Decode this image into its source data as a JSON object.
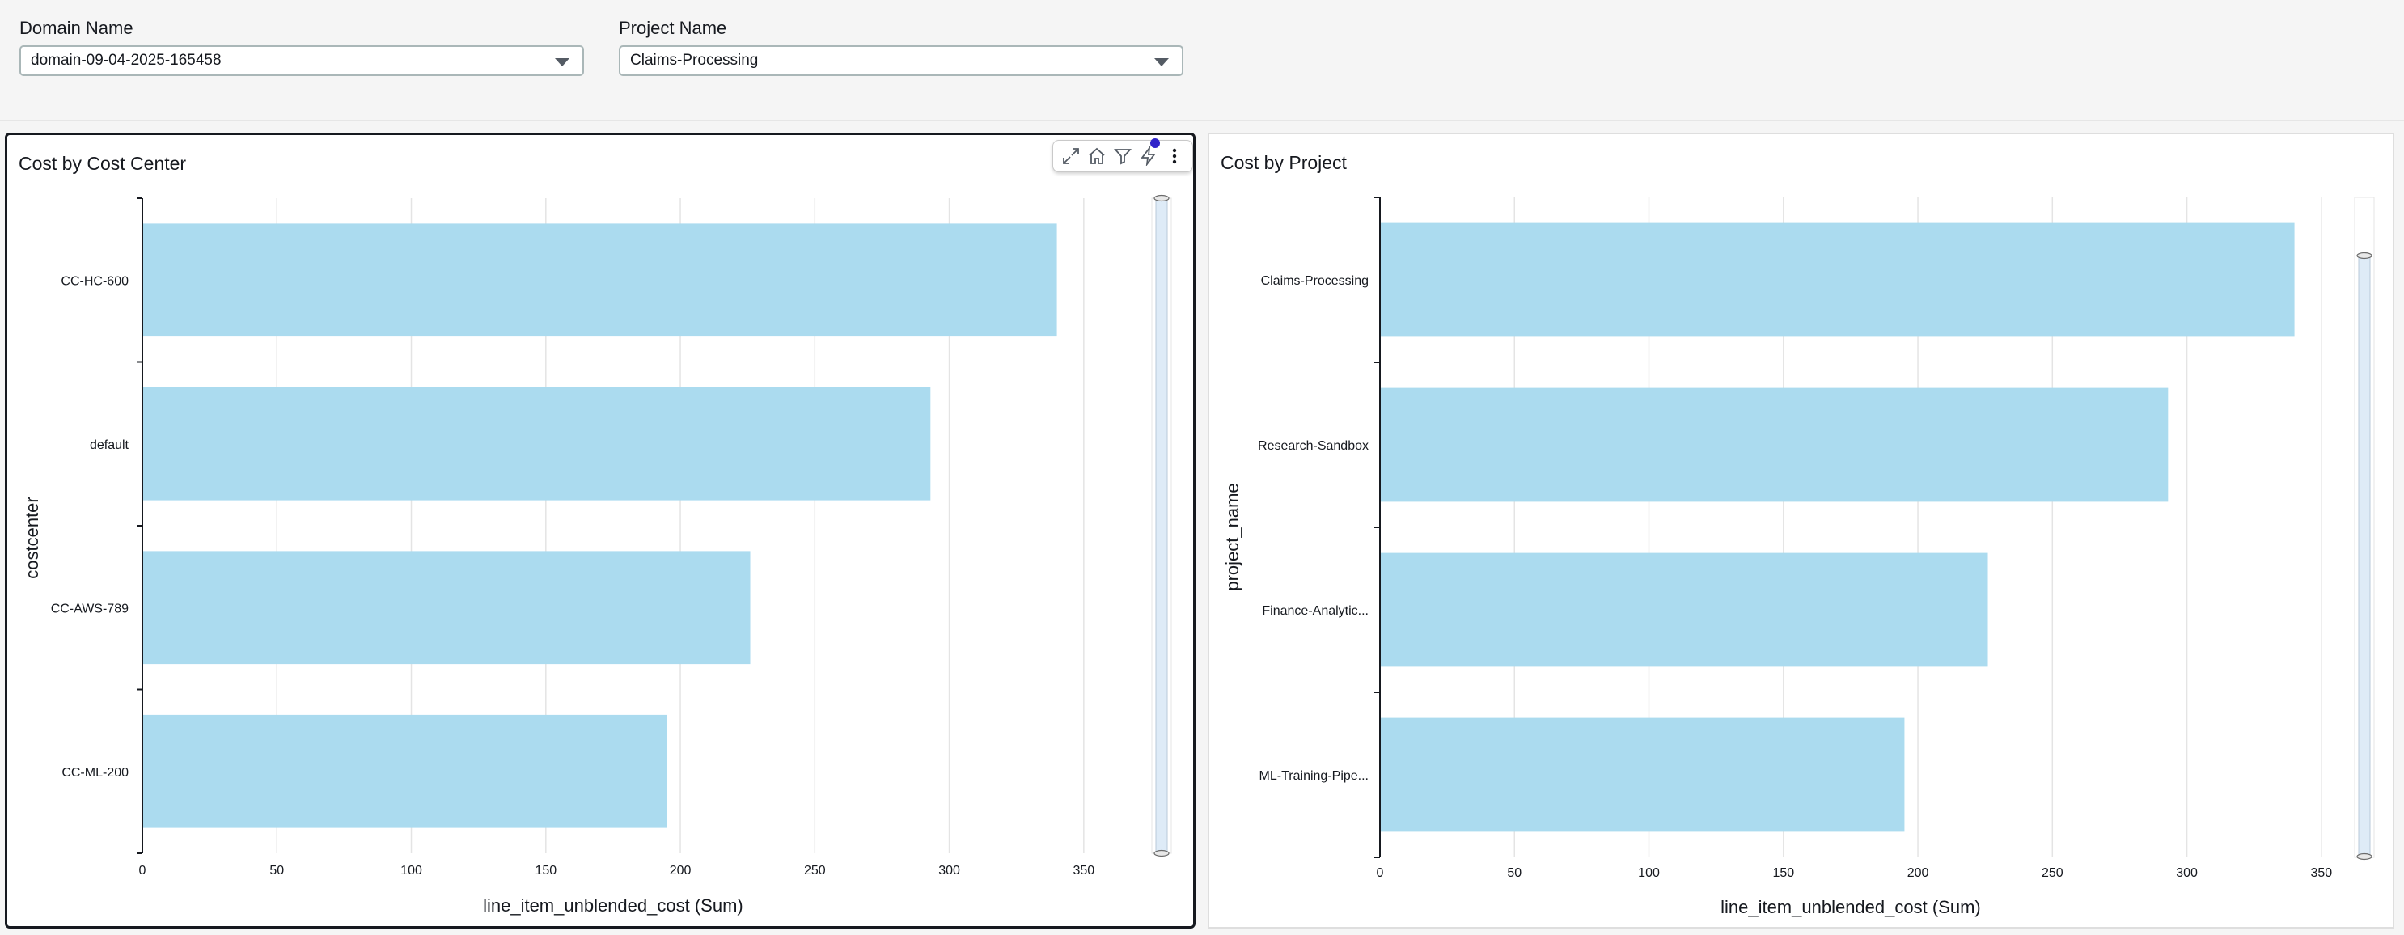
{
  "filters": {
    "domain": {
      "label": "Domain Name",
      "value": "domain-09-04-2025-165458"
    },
    "project": {
      "label": "Project Name",
      "value": "Claims-Processing"
    }
  },
  "colors": {
    "bar": "#abdbef",
    "grid": "#e4e4e4",
    "axis": "#16191f",
    "scroll": "#deebf7"
  },
  "panels": {
    "left": {
      "title": "Cost by Cost Center"
    },
    "right": {
      "title": "Cost by Project"
    }
  },
  "toolbar": {
    "icons": [
      "expand-icon",
      "home-icon",
      "filter-icon",
      "lightning-icon",
      "more-options-icon"
    ]
  },
  "chart_data": [
    {
      "type": "bar",
      "orientation": "horizontal",
      "title": "Cost by Cost Center",
      "xlabel": "line_item_unblended_cost (Sum)",
      "ylabel": "costcenter",
      "categories": [
        "CC-HC-600",
        "default",
        "CC-AWS-789",
        "CC-ML-200"
      ],
      "values": [
        340,
        293,
        226,
        195
      ],
      "xlim": [
        0,
        350
      ],
      "xticks": [
        "0",
        "50",
        "100",
        "150",
        "200",
        "250",
        "300",
        "350"
      ],
      "grid": true
    },
    {
      "type": "bar",
      "orientation": "horizontal",
      "title": "Cost by Project",
      "xlabel": "line_item_unblended_cost (Sum)",
      "ylabel": "project_name",
      "categories": [
        "Claims-Processing",
        "Research-Sandbox",
        "Finance-Analytic...",
        "ML-Training-Pipe..."
      ],
      "values": [
        340,
        293,
        226,
        195
      ],
      "xlim": [
        0,
        350
      ],
      "xticks": [
        "0",
        "50",
        "100",
        "150",
        "200",
        "250",
        "300",
        "350"
      ],
      "grid": true
    }
  ]
}
